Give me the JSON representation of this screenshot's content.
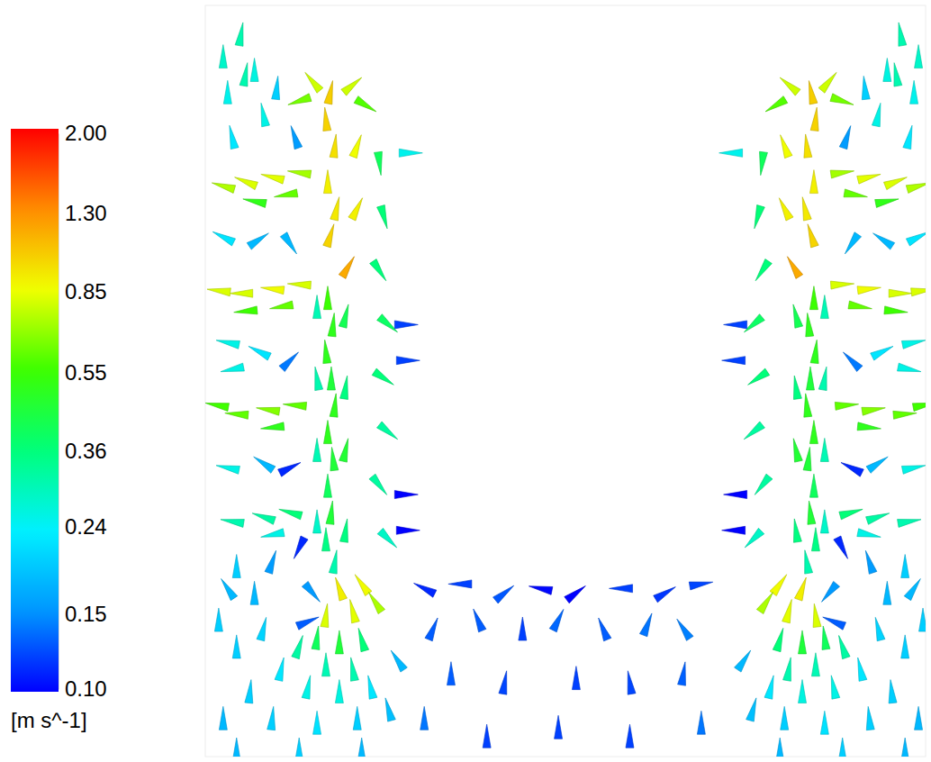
{
  "chart_data": {
    "type": "vector",
    "x": [
      140,
      135,
      145,
      137,
      147,
      140,
      160,
      137,
      143,
      135,
      141,
      145,
      137,
      143,
      137,
      141,
      135,
      145,
      125,
      157,
      125,
      157,
      125,
      157,
      125,
      157,
      120,
      165,
      180,
      105,
      170,
      170,
      195,
      200,
      195,
      205,
      200,
      205,
      195,
      205,
      230,
      225,
      227,
      225,
      227,
      105,
      75,
      45,
      20,
      90,
      55,
      105,
      75,
      40,
      15,
      85,
      45,
      100,
      70,
      35,
      13,
      75,
      95,
      65,
      30,
      75,
      25,
      45,
      65,
      30,
      20,
      60,
      95,
      25,
      60,
      95,
      30,
      25,
      65,
      95,
      35,
      75,
      105,
      20,
      40,
      55,
      80,
      100,
      150,
      175,
      190,
      165,
      135,
      120,
      115,
      125,
      150,
      175,
      105,
      135,
      165,
      115,
      150,
      185,
      85,
      65,
      35,
      15,
      50,
      20,
      75,
      125,
      170,
      205,
      35,
      105,
      175,
      215,
      25,
      55,
      678,
      683,
      673,
      681,
      671,
      678,
      658,
      681,
      675,
      683,
      677,
      673,
      681,
      675,
      681,
      677,
      683,
      673,
      693,
      661,
      693,
      661,
      693,
      661,
      693,
      661,
      698,
      653,
      638,
      713,
      648,
      648,
      623,
      618,
      623,
      613,
      618,
      613,
      623,
      613,
      588,
      593,
      591,
      593,
      591,
      713,
      743,
      773,
      798,
      728,
      763,
      713,
      743,
      778,
      803,
      733,
      773,
      718,
      748,
      783,
      805,
      743,
      723,
      753,
      788,
      743,
      793,
      773,
      753,
      788,
      798,
      758,
      723,
      793,
      758,
      723,
      788,
      793,
      753,
      723,
      783,
      743,
      713,
      798,
      778,
      763,
      738,
      718,
      668,
      643,
      628,
      653,
      683,
      698,
      703,
      693,
      668,
      643,
      713,
      683,
      653,
      703,
      668,
      633,
      733,
      753,
      783,
      803,
      768,
      798,
      743,
      693,
      648,
      613,
      783,
      713,
      643,
      603,
      793,
      763,
      245,
      285,
      335,
      375,
      415,
      465,
      515,
      555,
      255,
      305,
      355,
      395,
      445,
      495,
      535,
      275,
      335,
      415,
      475,
      535,
      245,
      315,
      395,
      475,
      555
    ],
    "y": [
      743,
      713,
      683,
      643,
      613,
      583,
      548,
      513,
      483,
      453,
      423,
      393,
      363,
      333,
      303,
      273,
      243,
      218,
      503,
      493,
      423,
      413,
      343,
      343,
      263,
      253,
      755,
      751,
      728,
      733,
      683,
      613,
      663,
      603,
      543,
      483,
      423,
      363,
      303,
      243,
      675,
      483,
      443,
      293,
      253,
      653,
      648,
      643,
      638,
      628,
      621,
      528,
      523,
      518,
      521,
      503,
      498,
      393,
      388,
      383,
      393,
      368,
      273,
      268,
      263,
      248,
      743,
      763,
      718,
      693,
      581,
      578,
      573,
      463,
      453,
      443,
      433,
      323,
      328,
      323,
      213,
      218,
      233,
      783,
      808,
      768,
      748,
      693,
      188,
      193,
      173,
      163,
      158,
      183,
      151,
      133,
      128,
      131,
      123,
      103,
      98,
      78,
      73,
      78,
      98,
      143,
      123,
      153,
      73,
      43,
      43,
      38,
      43,
      53,
      8,
      8,
      8,
      108,
      188,
      183,
      743,
      713,
      683,
      643,
      613,
      583,
      548,
      513,
      483,
      453,
      423,
      393,
      363,
      333,
      303,
      273,
      243,
      218,
      503,
      493,
      423,
      413,
      343,
      343,
      263,
      253,
      755,
      751,
      728,
      733,
      683,
      613,
      663,
      603,
      543,
      483,
      423,
      363,
      303,
      243,
      675,
      483,
      443,
      293,
      253,
      653,
      648,
      643,
      638,
      628,
      621,
      528,
      523,
      518,
      521,
      503,
      498,
      393,
      388,
      383,
      393,
      368,
      273,
      268,
      263,
      248,
      743,
      763,
      718,
      693,
      581,
      578,
      573,
      463,
      453,
      443,
      433,
      323,
      328,
      323,
      213,
      218,
      233,
      783,
      808,
      768,
      748,
      693,
      188,
      193,
      173,
      163,
      158,
      183,
      151,
      133,
      128,
      131,
      123,
      103,
      98,
      78,
      73,
      78,
      98,
      143,
      123,
      153,
      73,
      43,
      43,
      38,
      43,
      53,
      8,
      8,
      8,
      108,
      188,
      183,
      188,
      193,
      183,
      188,
      183,
      188,
      183,
      193,
      143,
      153,
      143,
      153,
      143,
      148,
      143,
      93,
      83,
      88,
      83,
      93,
      43,
      23,
      33,
      23,
      38
    ],
    "u": [
      0.2,
      -0.1,
      0.1,
      0,
      0.2,
      0.3,
      0.6,
      0,
      0.05,
      -0.05,
      0,
      0.05,
      0,
      -0.05,
      0,
      0.05,
      0,
      0.05,
      0,
      0.1,
      -0.05,
      0.05,
      0,
      0.1,
      0,
      0.05,
      -0.5,
      0.6,
      0.5,
      -0.6,
      0.3,
      0.4,
      0.05,
      0.1,
      0.2,
      0.3,
      0.3,
      0.25,
      0.2,
      0.2,
      0.25,
      0.12,
      0.12,
      0.1,
      0.1,
      -0.7,
      -0.8,
      -0.75,
      -0.7,
      -0.6,
      -0.5,
      -0.8,
      -0.85,
      -0.8,
      -0.8,
      -0.6,
      -0.55,
      -0.6,
      -0.65,
      -0.6,
      -0.55,
      -0.5,
      -0.35,
      -0.3,
      -0.3,
      -0.25,
      0,
      0.05,
      -0.05,
      -0.05,
      -0.2,
      0.15,
      0.1,
      -0.25,
      -0.2,
      0.1,
      -0.25,
      -0.25,
      -0.15,
      0.1,
      0,
      0.05,
      -0.05,
      0,
      0.05,
      0,
      0.02,
      -0.05,
      -0.3,
      -0.5,
      -0.4,
      -0.2,
      0.1,
      0.1,
      0.12,
      0.05,
      0,
      -0.1,
      0.1,
      0,
      -0.05,
      0.05,
      0,
      -0.05,
      0.05,
      0.05,
      0,
      0,
      0.02,
      0,
      0.02,
      0,
      0,
      -0.05,
      0,
      0,
      0,
      -0.1,
      -0.1,
      0,
      -0.2,
      0.1,
      -0.1,
      0,
      -0.2,
      -0.3,
      -0.6,
      0,
      -0.05,
      0.05,
      0,
      -0.05,
      0,
      0.05,
      0,
      -0.05,
      0,
      -0.05,
      0,
      -0.1,
      0.05,
      -0.05,
      0,
      -0.1,
      0,
      -0.05,
      0.5,
      -0.6,
      -0.5,
      0.6,
      -0.3,
      -0.4,
      -0.05,
      -0.1,
      -0.2,
      -0.3,
      -0.3,
      -0.25,
      -0.2,
      -0.2,
      -0.25,
      -0.12,
      -0.12,
      -0.1,
      -0.1,
      0.7,
      0.8,
      0.75,
      0.7,
      0.6,
      0.5,
      0.8,
      0.85,
      0.8,
      0.8,
      0.6,
      0.55,
      0.6,
      0.65,
      0.6,
      0.55,
      0.5,
      0.35,
      0.3,
      0.3,
      0.25,
      0,
      -0.05,
      0.05,
      0.05,
      0.2,
      -0.15,
      -0.1,
      0.25,
      0.2,
      -0.1,
      0.25,
      0.25,
      0.15,
      -0.1,
      0,
      -0.05,
      0.05,
      0,
      -0.05,
      0,
      -0.02,
      0.05,
      0.3,
      0.5,
      0.4,
      0.2,
      -0.1,
      -0.1,
      -0.12,
      -0.05,
      0,
      0.1,
      -0.1,
      0,
      0.05,
      -0.05,
      0,
      0.05,
      -0.05,
      -0.05,
      0,
      0,
      -0.02,
      0,
      -0.02,
      0,
      0,
      0.05,
      0,
      0,
      0,
      0.1,
      0.1,
      0,
      -0.1,
      -0.12,
      0.1,
      -0.1,
      0.08,
      -0.12,
      0.1,
      0.12,
      0.05,
      -0.05,
      0,
      0.06,
      -0.05,
      0.05,
      -0.08,
      0,
      0.02,
      0,
      -0.02,
      0.02,
      0,
      0,
      0,
      0,
      0
    ],
    "v": [
      1.0,
      1.0,
      0.95,
      0.9,
      0.9,
      0.95,
      1.0,
      0.55,
      0.5,
      0.5,
      0.45,
      0.5,
      0.5,
      0.45,
      0.4,
      0.45,
      0.35,
      0.3,
      0.3,
      0.4,
      0.3,
      0.35,
      0.3,
      0.45,
      0.28,
      0.35,
      0.6,
      0.5,
      -0.3,
      -0.2,
      0.8,
      0.8,
      -0.4,
      -0.35,
      -0.3,
      -0.25,
      -0.2,
      -0.2,
      -0.25,
      -0.2,
      0,
      0,
      0,
      0,
      0,
      0.1,
      0.2,
      0.3,
      0.2,
      -0.1,
      0.1,
      0.05,
      0.1,
      0,
      0.1,
      -0.1,
      -0.05,
      0.05,
      0.1,
      0.05,
      0.1,
      -0.05,
      0.1,
      0.1,
      0.05,
      -0.05,
      0.25,
      0.3,
      0.25,
      0.22,
      0.1,
      0.1,
      -0.15,
      0.05,
      0.1,
      0.1,
      -0.05,
      0.05,
      0.1,
      0.05,
      0.2,
      0.15,
      -0.1,
      0.28,
      0.3,
      0.26,
      0.2,
      0.15,
      0.85,
      0.7,
      0.6,
      0.8,
      0.8,
      -0.12,
      0.05,
      0.4,
      0.45,
      0.35,
      0.3,
      0.3,
      0.3,
      0.25,
      0.26,
      0.22,
      0.22,
      0.2,
      0.2,
      0.2,
      0.2,
      0.18,
      0.2,
      0.22,
      0.2,
      0.18,
      0.18,
      0.2,
      0.18,
      0.15,
      0.15,
      0.18,
      1.0,
      1.0,
      0.95,
      0.9,
      0.9,
      0.95,
      1.0,
      0.55,
      0.5,
      0.5,
      0.45,
      0.5,
      0.5,
      0.45,
      0.4,
      0.45,
      0.35,
      0.3,
      0.3,
      0.4,
      0.3,
      0.35,
      0.3,
      0.45,
      0.28,
      0.35,
      0.6,
      0.5,
      -0.3,
      -0.2,
      0.8,
      0.8,
      -0.4,
      -0.35,
      -0.3,
      -0.25,
      -0.2,
      -0.2,
      -0.25,
      -0.2,
      0,
      0,
      0,
      0,
      0,
      0.1,
      0.2,
      0.3,
      0.2,
      -0.1,
      0.1,
      0.05,
      0.1,
      0,
      0.1,
      -0.1,
      -0.05,
      0.05,
      0.1,
      0.05,
      0.1,
      -0.05,
      0.1,
      0.1,
      0.05,
      -0.05,
      0.25,
      0.3,
      0.25,
      0.22,
      0.1,
      0.1,
      -0.15,
      0.05,
      0.1,
      0.1,
      -0.05,
      0.05,
      0.1,
      0.05,
      0.2,
      0.15,
      -0.1,
      0.28,
      0.3,
      0.26,
      0.2,
      0.15,
      0.85,
      0.7,
      0.6,
      0.8,
      0.8,
      -0.12,
      0.05,
      0.4,
      0.45,
      0.35,
      0.3,
      0.3,
      0.3,
      0.25,
      0.26,
      0.22,
      0.22,
      0.2,
      0.2,
      0.2,
      0.2,
      0.18,
      0.2,
      0.22,
      0.2,
      0.18,
      0.18,
      0.2,
      0.18,
      0.15,
      0.15,
      0.18,
      0.05,
      0,
      0.08,
      0.02,
      0.06,
      0,
      0.06,
      0.02,
      0.12,
      0.12,
      0.12,
      0.12,
      0.12,
      0.13,
      0.12,
      0.13,
      0.12,
      0.12,
      0.12,
      0.13,
      0.14,
      0.12,
      0.12,
      0.12,
      0.14
    ],
    "xlim": [
      0,
      806
    ],
    "ylim": [
      0,
      840
    ],
    "tick_labels": false,
    "colorbar": {
      "range": [
        0.1,
        2.0
      ],
      "log": true,
      "ticks": [
        {
          "value": 0.1,
          "label": "0.10"
        },
        0.15,
        0.24,
        0.36,
        0.55,
        0.85,
        {
          "value": 1.3,
          "label": "1.30"
        },
        {
          "value": 2.0,
          "label": "2.00"
        }
      ],
      "label": "[m s^-1]"
    }
  }
}
